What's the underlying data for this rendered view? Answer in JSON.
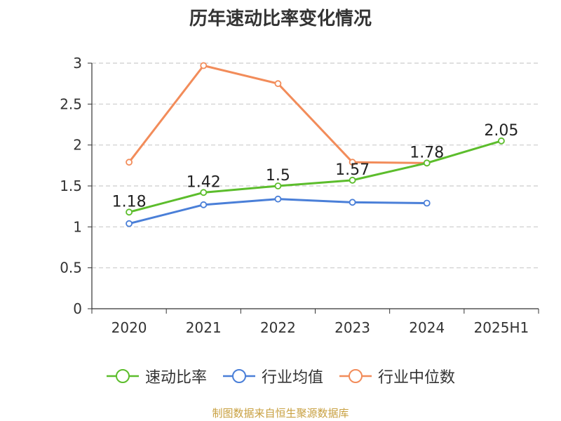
{
  "title": "历年速动比率变化情况",
  "source": "制图数据来自恒生聚源数据库",
  "chart_data": {
    "type": "line",
    "categories": [
      "2020",
      "2021",
      "2022",
      "2023",
      "2024",
      "2025H1"
    ],
    "ylim": [
      0,
      3
    ],
    "yticks": [
      "0",
      "0.5",
      "1",
      "1.5",
      "2",
      "2.5",
      "3"
    ],
    "grid": true,
    "legend_position": "bottom",
    "series": [
      {
        "name": "速动比率",
        "color": "#5cbd2c",
        "values": [
          1.18,
          1.42,
          1.5,
          1.57,
          1.78,
          2.05
        ],
        "labels": [
          "1.18",
          "1.42",
          "1.5",
          "1.57",
          "1.78",
          "2.05"
        ]
      },
      {
        "name": "行业均值",
        "color": "#4a7fd8",
        "values": [
          1.04,
          1.27,
          1.34,
          1.3,
          1.29,
          null
        ]
      },
      {
        "name": "行业中位数",
        "color": "#f28c5a",
        "values": [
          1.79,
          2.97,
          2.75,
          1.79,
          1.78,
          null
        ]
      }
    ]
  }
}
